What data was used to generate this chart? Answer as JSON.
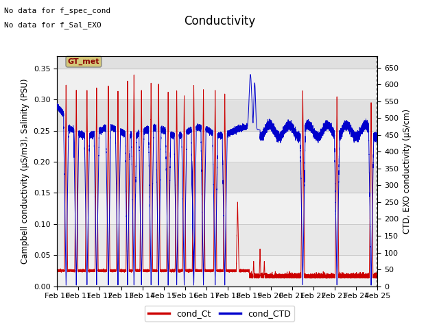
{
  "title": "Conductivity",
  "ylabel_left": "Campbell conductivity (μS/m3), Salinity (PSU)",
  "ylabel_right": "CTD, EXO conductivity (μS/cm)",
  "xlim": [
    0,
    15
  ],
  "ylim_left": [
    0.0,
    0.37
  ],
  "ylim_right": [
    0,
    685
  ],
  "xtick_labels": [
    "Feb 10",
    "Feb 11",
    "Feb 12",
    "Feb 13",
    "Feb 14",
    "Feb 15",
    "Feb 16",
    "Feb 17",
    "Feb 18",
    "Feb 19",
    "Feb 20",
    "Feb 21",
    "Feb 22",
    "Feb 23",
    "Feb 24",
    "Feb 25"
  ],
  "yticks_left": [
    0.0,
    0.05,
    0.1,
    0.15,
    0.2,
    0.25,
    0.3,
    0.35
  ],
  "yticks_right": [
    0,
    50,
    100,
    150,
    200,
    250,
    300,
    350,
    400,
    450,
    500,
    550,
    600,
    650
  ],
  "annotation1": "No data for f_spec_cond",
  "annotation2": "No data for f_Sal_EXO",
  "legend_label_red": "cond_Ct",
  "legend_label_blue": "cond_CTD",
  "gtmet_label": "GT_met",
  "line_red_color": "#cc0000",
  "line_blue_color": "#0000cc",
  "band1_color": "#d8d8d8",
  "band2_color": "#e8e8e8",
  "gtmet_bg": "#d4c87a",
  "title_fontsize": 12,
  "label_fontsize": 8.5,
  "annot_fontsize": 8,
  "tick_fontsize": 8
}
